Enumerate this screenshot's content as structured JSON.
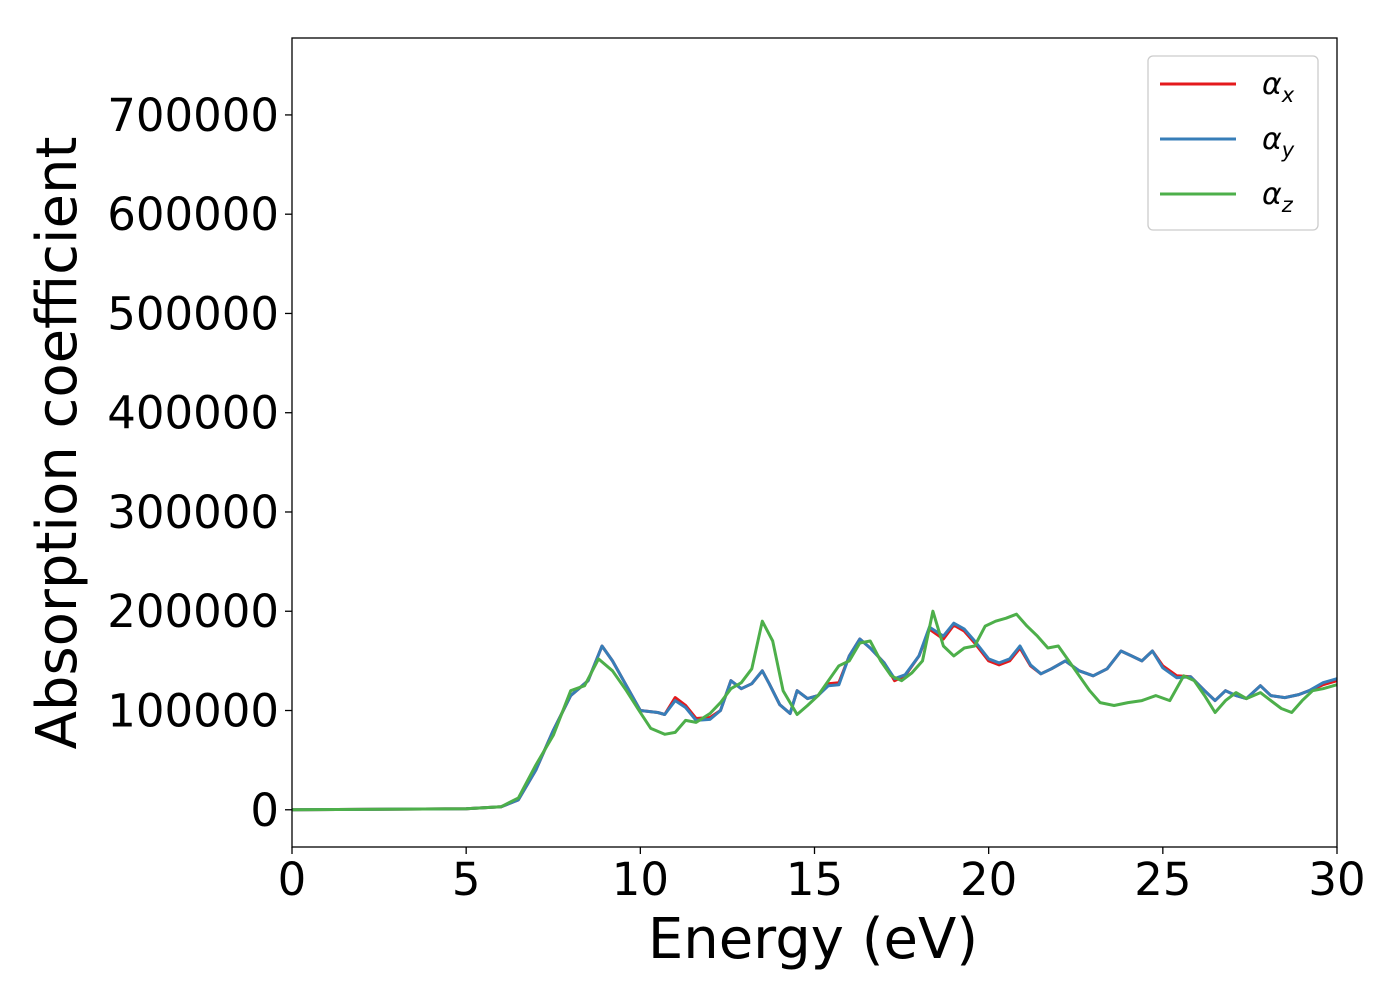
{
  "chart_data": {
    "type": "line",
    "title": "",
    "xlabel": "Energy (eV)",
    "ylabel": "Absorption coefficient",
    "xlim": [
      0,
      30
    ],
    "ylim": [
      -37500,
      777500
    ],
    "xticks": [
      0,
      5,
      10,
      15,
      20,
      25,
      30
    ],
    "xtick_labels": [
      "0",
      "5",
      "10",
      "15",
      "20",
      "25",
      "30"
    ],
    "yticks": [
      0,
      100000,
      200000,
      300000,
      400000,
      500000,
      600000,
      700000
    ],
    "ytick_labels": [
      "0",
      "100000",
      "200000",
      "300000",
      "400000",
      "500000",
      "600000",
      "700000"
    ],
    "grid": false,
    "legend_position": "top-right",
    "series": [
      {
        "name": "α_x",
        "label_base": "α",
        "label_sub": "x",
        "color": "#e41a1c",
        "points": [
          [
            0,
            0
          ],
          [
            5,
            1000
          ],
          [
            6,
            3000
          ],
          [
            6.5,
            10000
          ],
          [
            7,
            40000
          ],
          [
            7.5,
            80000
          ],
          [
            8,
            115000
          ],
          [
            8.5,
            130000
          ],
          [
            8.9,
            165000
          ],
          [
            9.2,
            150000
          ],
          [
            9.6,
            125000
          ],
          [
            10,
            100000
          ],
          [
            10.5,
            98000
          ],
          [
            10.7,
            96000
          ],
          [
            11,
            113000
          ],
          [
            11.3,
            105000
          ],
          [
            11.6,
            92000
          ],
          [
            12,
            93000
          ],
          [
            12.3,
            100000
          ],
          [
            12.6,
            130000
          ],
          [
            12.9,
            122000
          ],
          [
            13.2,
            127000
          ],
          [
            13.5,
            140000
          ],
          [
            13.7,
            127000
          ],
          [
            14,
            106000
          ],
          [
            14.3,
            97000
          ],
          [
            14.5,
            120000
          ],
          [
            14.8,
            112000
          ],
          [
            15.1,
            115000
          ],
          [
            15.4,
            127000
          ],
          [
            15.7,
            128000
          ],
          [
            16,
            155000
          ],
          [
            16.3,
            172000
          ],
          [
            16.6,
            163000
          ],
          [
            17,
            148000
          ],
          [
            17.3,
            130000
          ],
          [
            17.6,
            135000
          ],
          [
            18,
            155000
          ],
          [
            18.3,
            182000
          ],
          [
            18.7,
            172000
          ],
          [
            19,
            186000
          ],
          [
            19.3,
            180000
          ],
          [
            19.6,
            168000
          ],
          [
            20,
            150000
          ],
          [
            20.3,
            146000
          ],
          [
            20.6,
            150000
          ],
          [
            20.9,
            163000
          ],
          [
            21.2,
            145000
          ],
          [
            21.5,
            137000
          ],
          [
            21.8,
            142000
          ],
          [
            22.2,
            150000
          ],
          [
            22.6,
            140000
          ],
          [
            23,
            135000
          ],
          [
            23.4,
            142000
          ],
          [
            23.8,
            160000
          ],
          [
            24.1,
            155000
          ],
          [
            24.4,
            150000
          ],
          [
            24.7,
            160000
          ],
          [
            25,
            145000
          ],
          [
            25.4,
            135000
          ],
          [
            25.8,
            134000
          ],
          [
            26.2,
            120000
          ],
          [
            26.5,
            110000
          ],
          [
            26.8,
            120000
          ],
          [
            27.1,
            115000
          ],
          [
            27.4,
            112000
          ],
          [
            27.8,
            125000
          ],
          [
            28.1,
            115000
          ],
          [
            28.5,
            113000
          ],
          [
            28.9,
            116000
          ],
          [
            29.2,
            120000
          ],
          [
            29.6,
            126000
          ],
          [
            30,
            130000
          ]
        ]
      },
      {
        "name": "α_y",
        "label_base": "α",
        "label_sub": "y",
        "color": "#377eb8",
        "points": [
          [
            0,
            0
          ],
          [
            5,
            1000
          ],
          [
            6,
            3000
          ],
          [
            6.5,
            10000
          ],
          [
            7,
            40000
          ],
          [
            7.5,
            80000
          ],
          [
            8,
            115000
          ],
          [
            8.5,
            130000
          ],
          [
            8.9,
            165000
          ],
          [
            9.2,
            150000
          ],
          [
            9.6,
            125000
          ],
          [
            10,
            100000
          ],
          [
            10.5,
            98000
          ],
          [
            10.7,
            96000
          ],
          [
            11,
            110000
          ],
          [
            11.3,
            103000
          ],
          [
            11.6,
            90000
          ],
          [
            12,
            91000
          ],
          [
            12.3,
            100000
          ],
          [
            12.6,
            130000
          ],
          [
            12.9,
            122000
          ],
          [
            13.2,
            127000
          ],
          [
            13.5,
            140000
          ],
          [
            13.7,
            127000
          ],
          [
            14,
            106000
          ],
          [
            14.3,
            97000
          ],
          [
            14.5,
            120000
          ],
          [
            14.8,
            112000
          ],
          [
            15.1,
            115000
          ],
          [
            15.4,
            125000
          ],
          [
            15.7,
            126000
          ],
          [
            16,
            155000
          ],
          [
            16.3,
            172000
          ],
          [
            16.6,
            163000
          ],
          [
            17,
            148000
          ],
          [
            17.3,
            132000
          ],
          [
            17.6,
            136000
          ],
          [
            18,
            155000
          ],
          [
            18.3,
            184000
          ],
          [
            18.7,
            175000
          ],
          [
            19,
            188000
          ],
          [
            19.3,
            182000
          ],
          [
            19.6,
            170000
          ],
          [
            20,
            152000
          ],
          [
            20.3,
            148000
          ],
          [
            20.6,
            152000
          ],
          [
            20.9,
            165000
          ],
          [
            21.2,
            146000
          ],
          [
            21.5,
            137000
          ],
          [
            21.8,
            142000
          ],
          [
            22.2,
            150000
          ],
          [
            22.6,
            140000
          ],
          [
            23,
            135000
          ],
          [
            23.4,
            142000
          ],
          [
            23.8,
            160000
          ],
          [
            24.1,
            155000
          ],
          [
            24.4,
            150000
          ],
          [
            24.7,
            160000
          ],
          [
            25,
            143000
          ],
          [
            25.4,
            133000
          ],
          [
            25.8,
            134000
          ],
          [
            26.2,
            120000
          ],
          [
            26.5,
            110000
          ],
          [
            26.8,
            120000
          ],
          [
            27.1,
            115000
          ],
          [
            27.4,
            112000
          ],
          [
            27.8,
            125000
          ],
          [
            28.1,
            115000
          ],
          [
            28.5,
            113000
          ],
          [
            28.9,
            116000
          ],
          [
            29.2,
            120000
          ],
          [
            29.6,
            128000
          ],
          [
            30,
            132000
          ]
        ]
      },
      {
        "name": "α_z",
        "label_base": "α",
        "label_sub": "z",
        "color": "#4daf4a",
        "points": [
          [
            0,
            0
          ],
          [
            5,
            1000
          ],
          [
            6,
            3000
          ],
          [
            6.5,
            12000
          ],
          [
            7,
            45000
          ],
          [
            7.5,
            75000
          ],
          [
            8,
            120000
          ],
          [
            8.4,
            125000
          ],
          [
            8.8,
            152000
          ],
          [
            9.2,
            140000
          ],
          [
            9.6,
            120000
          ],
          [
            10,
            98000
          ],
          [
            10.3,
            82000
          ],
          [
            10.7,
            76000
          ],
          [
            11,
            78000
          ],
          [
            11.3,
            90000
          ],
          [
            11.6,
            88000
          ],
          [
            12,
            97000
          ],
          [
            12.3,
            108000
          ],
          [
            12.6,
            122000
          ],
          [
            12.9,
            128000
          ],
          [
            13.2,
            142000
          ],
          [
            13.5,
            190000
          ],
          [
            13.8,
            170000
          ],
          [
            14.1,
            120000
          ],
          [
            14.5,
            96000
          ],
          [
            14.8,
            105000
          ],
          [
            15.1,
            115000
          ],
          [
            15.4,
            130000
          ],
          [
            15.7,
            145000
          ],
          [
            16,
            150000
          ],
          [
            16.3,
            168000
          ],
          [
            16.6,
            170000
          ],
          [
            16.9,
            150000
          ],
          [
            17.2,
            135000
          ],
          [
            17.5,
            130000
          ],
          [
            17.8,
            138000
          ],
          [
            18.1,
            150000
          ],
          [
            18.4,
            200000
          ],
          [
            18.7,
            165000
          ],
          [
            19,
            155000
          ],
          [
            19.3,
            163000
          ],
          [
            19.6,
            165000
          ],
          [
            19.9,
            185000
          ],
          [
            20.2,
            190000
          ],
          [
            20.5,
            193000
          ],
          [
            20.8,
            197000
          ],
          [
            21.1,
            185000
          ],
          [
            21.4,
            175000
          ],
          [
            21.7,
            163000
          ],
          [
            22,
            165000
          ],
          [
            22.3,
            150000
          ],
          [
            22.6,
            135000
          ],
          [
            22.9,
            120000
          ],
          [
            23.2,
            108000
          ],
          [
            23.6,
            105000
          ],
          [
            24,
            108000
          ],
          [
            24.4,
            110000
          ],
          [
            24.8,
            115000
          ],
          [
            25.2,
            110000
          ],
          [
            25.6,
            135000
          ],
          [
            25.9,
            130000
          ],
          [
            26.2,
            115000
          ],
          [
            26.5,
            98000
          ],
          [
            26.8,
            110000
          ],
          [
            27.1,
            118000
          ],
          [
            27.4,
            112000
          ],
          [
            27.8,
            118000
          ],
          [
            28.1,
            110000
          ],
          [
            28.4,
            102000
          ],
          [
            28.7,
            98000
          ],
          [
            29,
            110000
          ],
          [
            29.3,
            120000
          ],
          [
            29.6,
            122000
          ],
          [
            30,
            126000
          ]
        ]
      }
    ]
  }
}
